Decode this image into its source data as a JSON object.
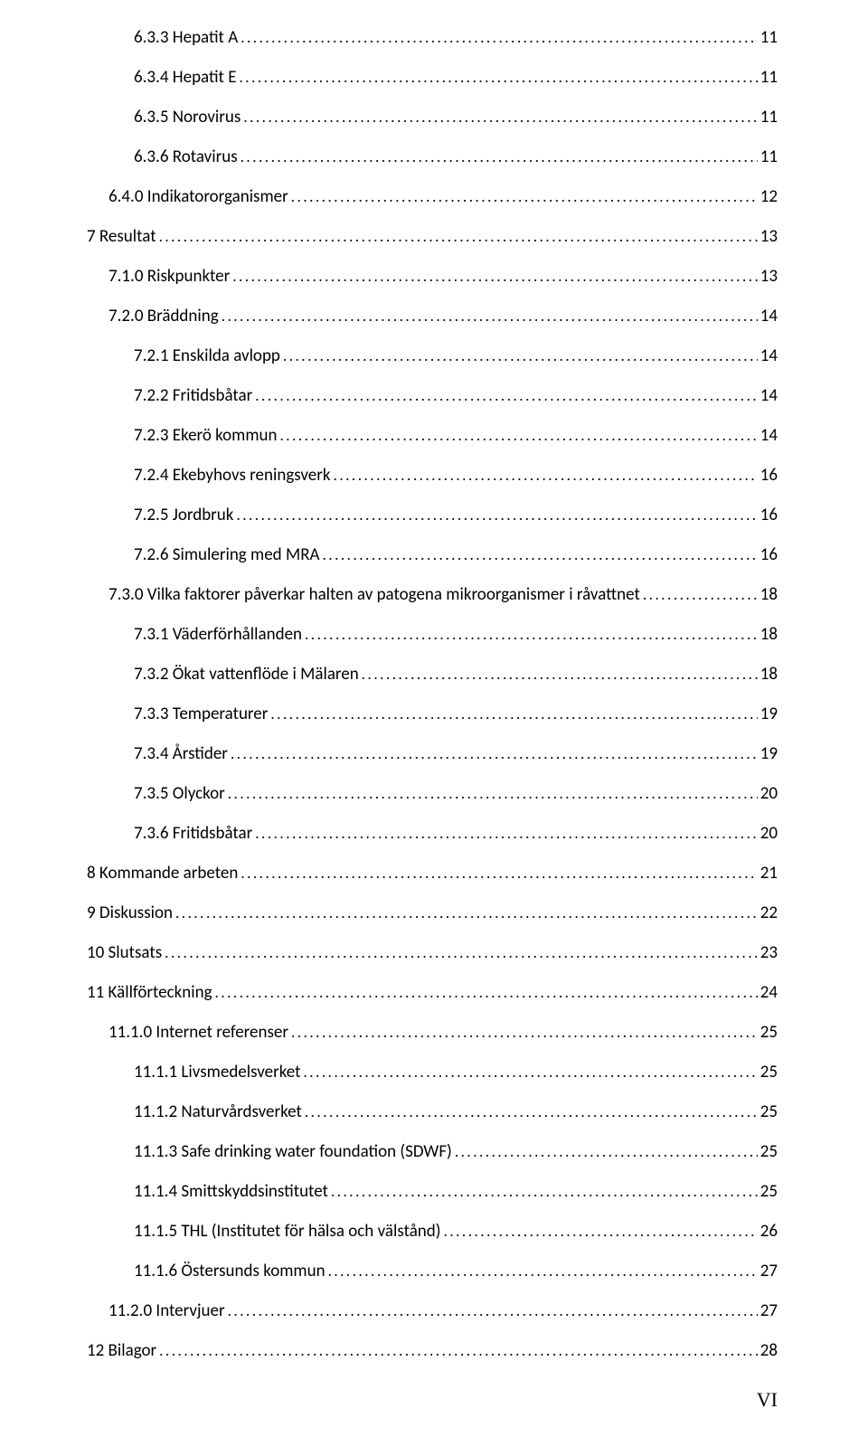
{
  "typography": {
    "font_family": "Calibri, 'Segoe UI', Arial, sans-serif",
    "font_size_pt": 11,
    "text_color": "#000000",
    "background_color": "#ffffff",
    "leader_char": ".",
    "page_number_font": "Times New Roman",
    "page_number": "VI"
  },
  "toc": [
    {
      "level": 2,
      "title": "6.3.3 Hepatit A",
      "page": "11"
    },
    {
      "level": 2,
      "title": "6.3.4 Hepatit E",
      "page": "11"
    },
    {
      "level": 2,
      "title": "6.3.5 Norovirus",
      "page": "11"
    },
    {
      "level": 2,
      "title": "6.3.6 Rotavirus",
      "page": "11"
    },
    {
      "level": 1,
      "title": "6.4.0 Indikatororganismer",
      "page": "12"
    },
    {
      "level": 0,
      "title": "7 Resultat",
      "page": "13"
    },
    {
      "level": 1,
      "title": "7.1.0 Riskpunkter",
      "page": "13"
    },
    {
      "level": 1,
      "title": "7.2.0 Bräddning",
      "page": "14"
    },
    {
      "level": 2,
      "title": "7.2.1 Enskilda avlopp",
      "page": "14"
    },
    {
      "level": 2,
      "title": "7.2.2 Fritidsbåtar",
      "page": "14"
    },
    {
      "level": 2,
      "title": "7.2.3 Ekerö kommun",
      "page": "14"
    },
    {
      "level": 2,
      "title": "7.2.4 Ekebyhovs reningsverk",
      "page": "16"
    },
    {
      "level": 2,
      "title": "7.2.5 Jordbruk",
      "page": "16"
    },
    {
      "level": 2,
      "title": "7.2.6  Simulering med MRA",
      "page": "16"
    },
    {
      "level": 1,
      "title": "7.3.0 Vilka faktorer påverkar halten av patogena mikroorganismer i råvattnet",
      "page": "18"
    },
    {
      "level": 2,
      "title": "7.3.1 Väderförhållanden",
      "page": "18"
    },
    {
      "level": 2,
      "title": "7.3.2 Ökat vattenflöde i Mälaren",
      "page": "18"
    },
    {
      "level": 2,
      "title": "7.3.3 Temperaturer",
      "page": "19"
    },
    {
      "level": 2,
      "title": "7.3.4 Årstider",
      "page": "19"
    },
    {
      "level": 2,
      "title": "7.3.5 Olyckor",
      "page": "20"
    },
    {
      "level": 2,
      "title": "7.3.6 Fritidsbåtar",
      "page": "20"
    },
    {
      "level": 0,
      "title": "8 Kommande arbeten",
      "page": "21"
    },
    {
      "level": 0,
      "title": "9 Diskussion",
      "page": "22"
    },
    {
      "level": 0,
      "title": "10 Slutsats",
      "page": "23"
    },
    {
      "level": 0,
      "title": "11 Källförteckning",
      "page": "24"
    },
    {
      "level": 1,
      "title": "11.1.0 Internet referenser",
      "page": "25"
    },
    {
      "level": 2,
      "title": "11.1.1 Livsmedelsverket",
      "page": "25"
    },
    {
      "level": 2,
      "title": "11.1.2 Naturvårdsverket",
      "page": "25"
    },
    {
      "level": 2,
      "title": "11.1.3 Safe drinking water foundation (SDWF)",
      "page": "25"
    },
    {
      "level": 2,
      "title": "11.1.4 Smittskyddsinstitutet",
      "page": "25"
    },
    {
      "level": 2,
      "title": "11.1.5 THL (Institutet för hälsa och välstånd)",
      "page": "26"
    },
    {
      "level": 2,
      "title": "11.1.6 Östersunds kommun",
      "page": "27"
    },
    {
      "level": 1,
      "title": "11.2.0 Intervjuer",
      "page": "27"
    },
    {
      "level": 0,
      "title": "12 Bilagor",
      "page": "28"
    }
  ]
}
